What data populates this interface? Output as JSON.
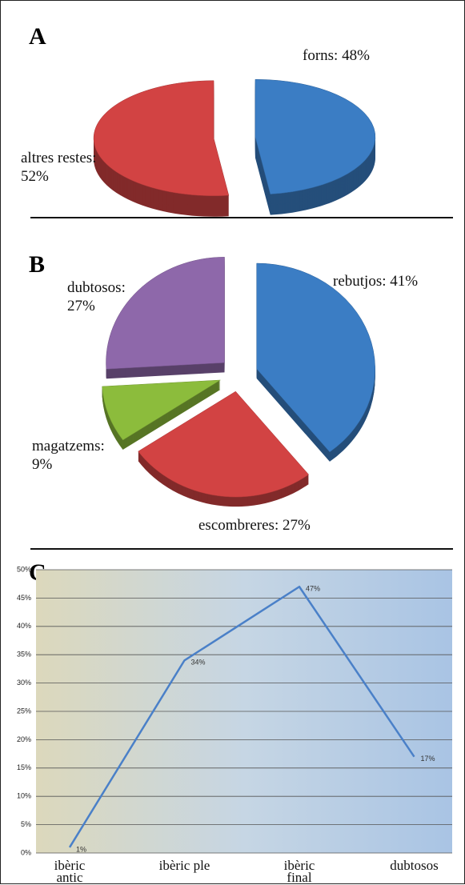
{
  "chart_data": [
    {
      "type": "pie",
      "title": "A",
      "values": [
        48,
        52
      ],
      "value_labels": [
        "forns: 48%",
        "altres restes: 52%"
      ],
      "colors": [
        "#3b7dc4",
        "#d24343"
      ]
    },
    {
      "type": "pie",
      "title": "B",
      "values": [
        41,
        27,
        9,
        27
      ],
      "value_labels": [
        "rebutjos: 41%",
        "escombreres: 27%",
        "magatzems: 9%",
        "dubtosos: 27%"
      ],
      "colors": [
        "#3b7dc4",
        "#d24343",
        "#8cbc3c",
        "#8e68aa"
      ]
    },
    {
      "type": "line",
      "title": "C",
      "categories": [
        "ibèric antic",
        "ibèric ple",
        "ibèric final",
        "dubtosos"
      ],
      "values": [
        1,
        34,
        47,
        17
      ],
      "value_labels": [
        "1%",
        "34%",
        "47%",
        "17%"
      ],
      "color": "#4a80c8",
      "ylim": [
        0,
        50
      ],
      "yticks": [
        {
          "value": 0,
          "label": "0%"
        },
        {
          "value": 5,
          "label": "5%"
        },
        {
          "value": 10,
          "label": "10%"
        },
        {
          "value": 15,
          "label": "15%"
        },
        {
          "value": 20,
          "label": "20%"
        },
        {
          "value": 25,
          "label": "25%"
        },
        {
          "value": 30,
          "label": "30%"
        },
        {
          "value": 35,
          "label": "35%"
        },
        {
          "value": 40,
          "label": "40%"
        },
        {
          "value": 45,
          "label": "45%"
        },
        {
          "value": 50,
          "label": "50%"
        }
      ],
      "grid": true
    }
  ]
}
